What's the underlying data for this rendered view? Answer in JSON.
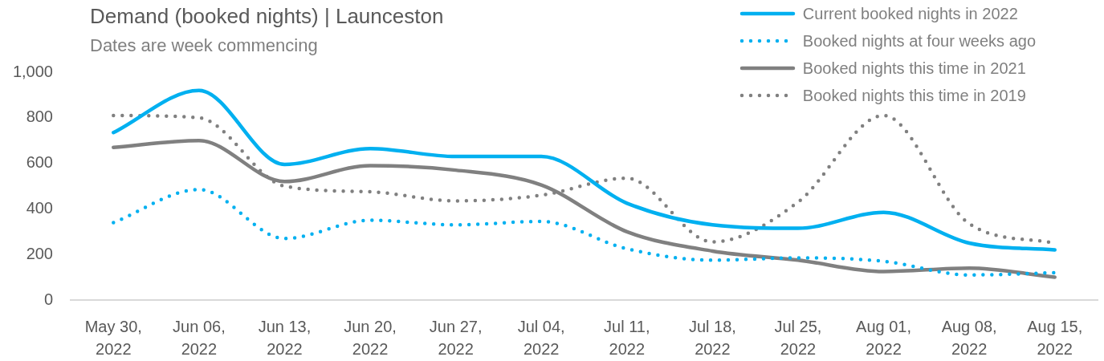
{
  "chart_data": {
    "type": "line",
    "title": "Demand (booked nights) | Launceston",
    "subtitle": "Dates are week commencing",
    "categories": [
      "May 30, 2022",
      "Jun 06, 2022",
      "Jun 13, 2022",
      "Jun 20, 2022",
      "Jun 27, 2022",
      "Jul 04, 2022",
      "Jul 11, 2022",
      "Jul 18, 2022",
      "Jul 25, 2022",
      "Aug 01, 2022",
      "Aug 08, 2022",
      "Aug 15, 2022"
    ],
    "series": [
      {
        "name": "Current booked nights in 2022",
        "color": "#00b0f0",
        "line_style": "solid",
        "values": [
          735,
          920,
          595,
          665,
          630,
          630,
          425,
          330,
          315,
          385,
          250,
          220
        ]
      },
      {
        "name": "Booked nights at four weeks ago",
        "color": "#00b0f0",
        "line_style": "dotted",
        "values": [
          340,
          485,
          270,
          350,
          330,
          345,
          225,
          175,
          185,
          170,
          110,
          120
        ]
      },
      {
        "name": "Booked nights this time in 2021",
        "color": "#808080",
        "line_style": "solid",
        "values": [
          670,
          700,
          520,
          590,
          570,
          505,
          300,
          215,
          175,
          125,
          140,
          100
        ]
      },
      {
        "name": "Booked nights this time in 2019",
        "color": "#808080",
        "line_style": "dotted",
        "values": [
          810,
          800,
          500,
          475,
          435,
          460,
          535,
          255,
          430,
          810,
          335,
          250
        ]
      }
    ],
    "ylim": [
      0,
      1000
    ],
    "yticks": [
      0,
      200,
      400,
      600,
      800,
      {
        "value": 1000,
        "label": "1,000"
      }
    ],
    "grid": false,
    "legend": "top right",
    "marker": "none"
  }
}
